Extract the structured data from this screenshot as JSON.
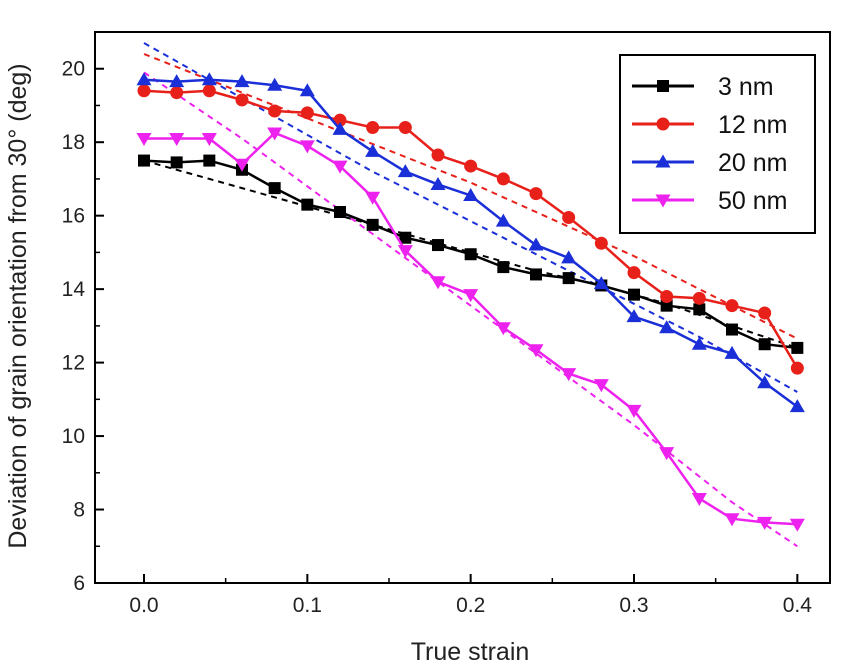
{
  "chart_data": {
    "type": "line",
    "xlabel": "True strain",
    "ylabel": "Deviation of grain orientation from 30° (deg)",
    "xlim": [
      -0.03,
      0.42
    ],
    "ylim": [
      6,
      21
    ],
    "xticks": [
      0.0,
      0.1,
      0.2,
      0.3,
      0.4
    ],
    "xtick_labels": [
      "0.0",
      "0.1",
      "0.2",
      "0.3",
      "0.4"
    ],
    "yticks": [
      6,
      8,
      10,
      12,
      14,
      16,
      18,
      20
    ],
    "ytick_labels": [
      "6",
      "8",
      "10",
      "12",
      "14",
      "16",
      "18",
      "20"
    ],
    "grid": false,
    "legend_position": "top-right",
    "x": [
      0.0,
      0.02,
      0.04,
      0.06,
      0.08,
      0.1,
      0.12,
      0.14,
      0.16,
      0.18,
      0.2,
      0.22,
      0.24,
      0.26,
      0.28,
      0.3,
      0.32,
      0.34,
      0.36,
      0.38,
      0.4
    ],
    "series": [
      {
        "name": "3 nm",
        "color": "#000000",
        "marker": "square",
        "values": [
          17.5,
          17.45,
          17.5,
          17.25,
          16.75,
          16.3,
          16.1,
          15.75,
          15.4,
          15.2,
          14.95,
          14.6,
          14.4,
          14.3,
          14.1,
          13.85,
          13.55,
          13.45,
          12.9,
          12.5,
          12.4
        ],
        "fit": [
          17.5,
          17.25,
          17.0,
          16.75,
          16.5,
          16.25,
          16.0,
          15.75,
          15.5,
          15.25,
          15.0,
          14.75,
          14.5,
          14.3,
          14.1,
          13.85,
          13.6,
          13.3,
          13.0,
          12.7,
          12.4
        ]
      },
      {
        "name": "12 nm",
        "color": "#e8201a",
        "marker": "circle",
        "values": [
          19.4,
          19.35,
          19.4,
          19.15,
          18.85,
          18.8,
          18.6,
          18.4,
          18.4,
          17.65,
          17.35,
          17.0,
          16.6,
          15.95,
          15.25,
          14.45,
          13.8,
          13.75,
          13.55,
          13.35,
          11.85
        ],
        "fit": [
          20.4,
          20.05,
          19.7,
          19.35,
          19.0,
          18.65,
          18.3,
          17.95,
          17.6,
          17.25,
          16.9,
          16.5,
          16.1,
          15.7,
          15.3,
          14.9,
          14.45,
          14.0,
          13.55,
          13.1,
          12.65
        ]
      },
      {
        "name": "20 nm",
        "color": "#1a2fd8",
        "marker": "triangle-up",
        "values": [
          19.7,
          19.65,
          19.7,
          19.65,
          19.55,
          19.4,
          18.35,
          17.75,
          17.2,
          16.85,
          16.55,
          15.85,
          15.2,
          14.85,
          14.15,
          13.25,
          12.95,
          12.5,
          12.25,
          11.45,
          10.8
        ],
        "fit": [
          20.7,
          20.2,
          19.7,
          19.2,
          18.7,
          18.2,
          17.7,
          17.2,
          16.75,
          16.3,
          15.85,
          15.4,
          14.95,
          14.5,
          14.05,
          13.6,
          13.15,
          12.7,
          12.2,
          11.7,
          11.2
        ]
      },
      {
        "name": "50 nm",
        "color": "#ee22ee",
        "marker": "triangle-down",
        "values": [
          18.1,
          18.1,
          18.1,
          17.4,
          18.25,
          17.9,
          17.35,
          16.5,
          15.05,
          14.2,
          13.85,
          12.95,
          12.35,
          11.7,
          11.4,
          10.7,
          9.55,
          8.3,
          7.75,
          7.65,
          7.6
        ],
        "fit": [
          19.9,
          19.3,
          18.7,
          18.1,
          17.45,
          16.8,
          16.15,
          15.5,
          14.85,
          14.2,
          13.55,
          12.9,
          12.25,
          11.6,
          10.95,
          10.3,
          9.6,
          8.9,
          8.2,
          7.6,
          7.0
        ]
      }
    ]
  }
}
